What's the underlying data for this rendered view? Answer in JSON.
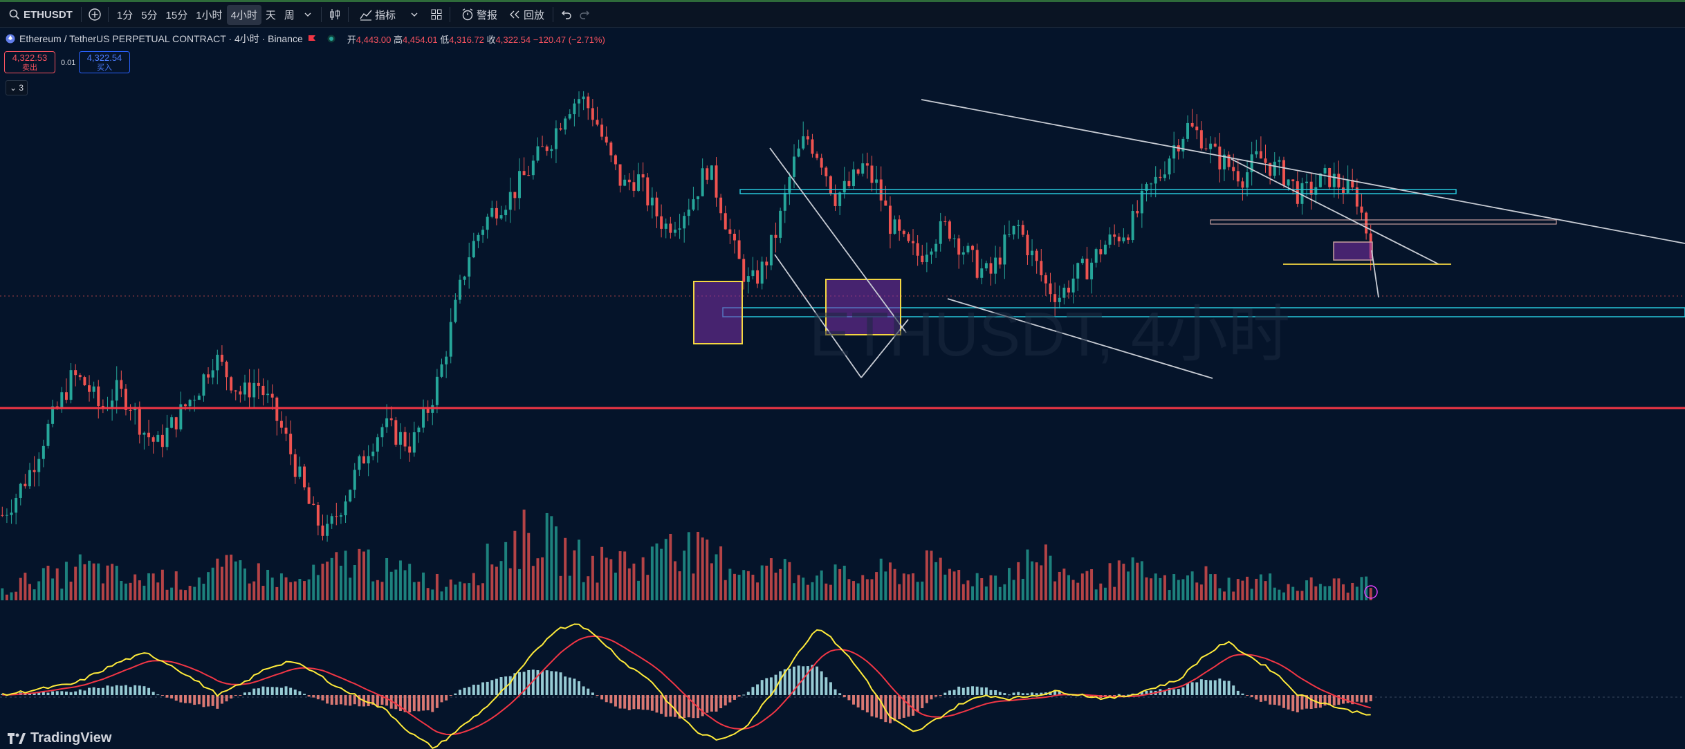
{
  "toolbar": {
    "symbol": "ETHUSDT",
    "intervals": [
      "1分",
      "5分",
      "15分",
      "1小时",
      "4小时",
      "天",
      "周"
    ],
    "active_interval": "4小时",
    "indicators_label": "指标",
    "alert_label": "警报",
    "replay_label": "回放"
  },
  "legend": {
    "title": "Ethereum / TetherUS PERPETUAL CONTRACT · 4小时 · Binance",
    "open_k": "开",
    "open_v": "4,443.00",
    "high_k": "高",
    "high_v": "4,454.01",
    "low_k": "低",
    "low_v": "4,316.72",
    "close_k": "收",
    "close_v": "4,322.54",
    "change": "−120.47 (−2.71%)"
  },
  "trade": {
    "sell_price": "4,322.53",
    "sell_label": "卖出",
    "buy_price": "4,322.54",
    "buy_label": "买入",
    "spread": "0.01"
  },
  "collapse_label": "⌄ 3",
  "watermark": "ETHUSDT, 4小时",
  "footer": {
    "brand": "TradingView"
  },
  "colors": {
    "background": "#05142a",
    "up": "#26a69a",
    "down": "#ef5350",
    "macd_line": "#ffeb3b",
    "signal_line": "#f23645",
    "trendline": "#c8ccd4",
    "support_line": "#f23645",
    "zone_fill": "#7b2fa8",
    "zone_border": "#f5d742",
    "cyan_zone": "#26c6da"
  },
  "icons": [
    "search-icon",
    "add-symbol-icon",
    "chevron-down-icon",
    "candle-style-icon",
    "indicators-icon",
    "layouts-icon",
    "alert-icon",
    "replay-icon",
    "undo-icon",
    "redo-icon",
    "flash-icon"
  ],
  "chart_data": {
    "type": "candlestick",
    "symbol": "ETHUSDT",
    "interval": "4小时",
    "exchange": "Binance",
    "last_close": 4322.54,
    "last_open": 4443.0,
    "last_high": 4454.01,
    "last_low": 4316.72,
    "change": -120.47,
    "change_pct": -2.71,
    "trend": "uptrend rally, peak, then descending channel / falling wedge consolidation, final drop",
    "price_path_relative": [
      0.16,
      0.2,
      0.25,
      0.32,
      0.38,
      0.44,
      0.42,
      0.37,
      0.41,
      0.39,
      0.33,
      0.3,
      0.34,
      0.38,
      0.42,
      0.48,
      0.44,
      0.4,
      0.43,
      0.38,
      0.32,
      0.24,
      0.16,
      0.12,
      0.18,
      0.24,
      0.3,
      0.34,
      0.32,
      0.3,
      0.36,
      0.44,
      0.56,
      0.68,
      0.74,
      0.78,
      0.8,
      0.84,
      0.88,
      0.92,
      0.98,
      1.0,
      0.96,
      0.88,
      0.82,
      0.84,
      0.78,
      0.74,
      0.76,
      0.8,
      0.86,
      0.78,
      0.68,
      0.62,
      0.66,
      0.74,
      0.86,
      0.92,
      0.88,
      0.8,
      0.82,
      0.86,
      0.82,
      0.74,
      0.7,
      0.68,
      0.72,
      0.74,
      0.7,
      0.66,
      0.64,
      0.7,
      0.74,
      0.68,
      0.62,
      0.6,
      0.64,
      0.66,
      0.7,
      0.72,
      0.74,
      0.8,
      0.84,
      0.9,
      0.94,
      0.92,
      0.88,
      0.86,
      0.84,
      0.88,
      0.86,
      0.84,
      0.8,
      0.82,
      0.84,
      0.82,
      0.8,
      0.7
    ],
    "volume_relative": [
      0.1,
      0.2,
      0.3,
      0.25,
      0.4,
      0.35,
      0.3,
      0.2,
      0.3,
      0.25,
      0.2,
      0.3,
      0.35,
      0.4,
      0.3,
      0.25,
      0.2,
      0.3,
      0.4,
      0.5,
      0.45,
      0.3,
      0.35,
      0.25,
      0.2,
      0.3,
      0.4,
      0.6,
      0.7,
      0.8,
      0.6,
      0.5,
      0.4,
      0.5,
      0.45,
      0.4,
      0.9,
      0.6,
      0.5,
      0.45,
      0.4,
      0.35,
      0.4,
      0.3,
      0.35,
      0.3,
      0.25,
      0.3,
      0.35,
      0.3,
      0.4,
      0.35,
      0.3,
      0.25,
      0.3,
      0.4,
      0.5,
      0.35,
      0.3,
      0.25,
      0.3,
      0.35,
      0.3,
      0.2,
      0.25,
      0.3,
      0.2,
      0.2,
      0.25,
      0.2,
      0.15,
      0.2,
      0.2,
      0.15,
      0.3
    ],
    "macd_relative": [
      0.0,
      0.05,
      0.1,
      0.15,
      0.3,
      0.45,
      0.55,
      0.4,
      0.2,
      0.0,
      0.15,
      0.35,
      0.45,
      0.3,
      0.1,
      -0.05,
      -0.2,
      -0.5,
      -0.7,
      -0.45,
      -0.2,
      0.1,
      0.5,
      0.85,
      0.95,
      0.7,
      0.4,
      0.2,
      -0.2,
      -0.5,
      -0.6,
      -0.4,
      0.0,
      0.5,
      0.9,
      0.6,
      0.2,
      -0.3,
      -0.5,
      -0.3,
      -0.1,
      0.0,
      -0.05,
      0.0,
      0.05,
      0.0,
      -0.05,
      0.0,
      0.1,
      0.2,
      0.5,
      0.7,
      0.5,
      0.3,
      0.0,
      -0.1,
      -0.2,
      -0.25
    ],
    "annotations": [
      "horizontal support line",
      "descending trendlines",
      "consolidation boxes",
      "cyan horizontal zones",
      "symmetrical triangle"
    ],
    "grid": false
  }
}
